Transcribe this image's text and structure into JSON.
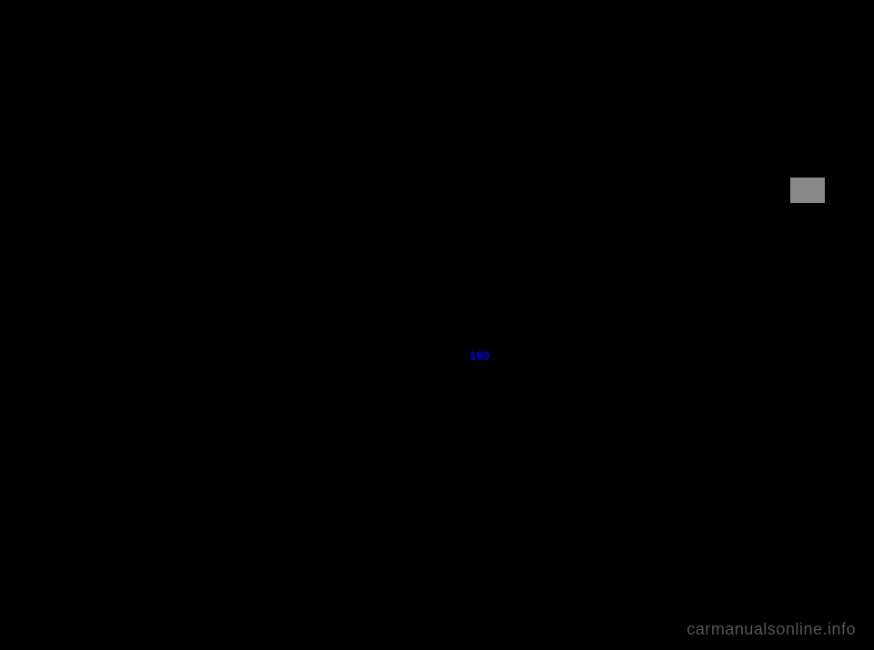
{
  "page": {
    "marker_color": "#888888",
    "link_text": "160",
    "link_color": "#0000ee",
    "watermark": "carmanualsonline.info",
    "watermark_color": "#555555",
    "background_color": "#000000"
  }
}
